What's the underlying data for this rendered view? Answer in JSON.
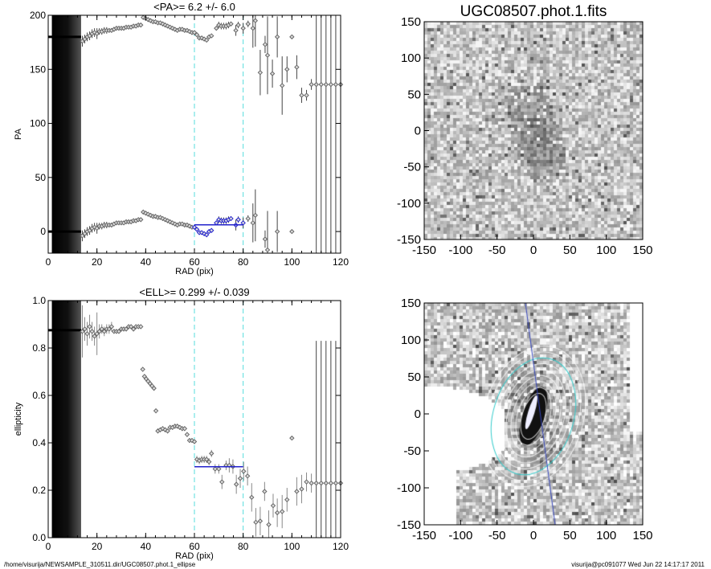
{
  "chart_data": [
    {
      "type": "scatter",
      "title": "<PA>=   6.2 +/-   6.0",
      "xlabel": "RAD (pix)",
      "ylabel": "PA",
      "xlim": [
        0,
        120
      ],
      "ylim": [
        -20,
        200
      ],
      "xticks": [
        "0",
        "20",
        "40",
        "60",
        "80",
        "100",
        "120"
      ],
      "yticks": [
        "0",
        "50",
        "100",
        "150",
        "200"
      ],
      "fit_range": [
        60,
        80
      ],
      "fit_value": 6.2,
      "fit_error": 6.0,
      "inner_value": 180,
      "points": [
        [
          14,
          176,
          5
        ],
        [
          15,
          178,
          4
        ],
        [
          16,
          180,
          4
        ],
        [
          17,
          181,
          4
        ],
        [
          18,
          183,
          4
        ],
        [
          19,
          184,
          4
        ],
        [
          20,
          183,
          5
        ],
        [
          21,
          185,
          3
        ],
        [
          22,
          185,
          3
        ],
        [
          23,
          186,
          3
        ],
        [
          24,
          186,
          3
        ],
        [
          25,
          186,
          2
        ],
        [
          26,
          186,
          2
        ],
        [
          27,
          187,
          2
        ],
        [
          28,
          188,
          2
        ],
        [
          29,
          188,
          2
        ],
        [
          30,
          188,
          2
        ],
        [
          31,
          188,
          2
        ],
        [
          32,
          189,
          1
        ],
        [
          33,
          189,
          1
        ],
        [
          34,
          189,
          1
        ],
        [
          35,
          190,
          1
        ],
        [
          36,
          190,
          1
        ],
        [
          37,
          191,
          1
        ],
        [
          38,
          191,
          1
        ],
        [
          39,
          198,
          1
        ],
        [
          40,
          197,
          1
        ],
        [
          41,
          196,
          1
        ],
        [
          42,
          195,
          1
        ],
        [
          43,
          194,
          1
        ],
        [
          44,
          194,
          1
        ],
        [
          45,
          193,
          1
        ],
        [
          46,
          193,
          1
        ],
        [
          47,
          192,
          1
        ],
        [
          48,
          191,
          1
        ],
        [
          49,
          190,
          1
        ],
        [
          50,
          189,
          1
        ],
        [
          51,
          188,
          1
        ],
        [
          52,
          187,
          1
        ],
        [
          53,
          186,
          1
        ],
        [
          54,
          187,
          1
        ],
        [
          55,
          187,
          1
        ],
        [
          56,
          186,
          1
        ],
        [
          57,
          186,
          1
        ],
        [
          58,
          185,
          1
        ],
        [
          59,
          184,
          1
        ],
        [
          60,
          184,
          1
        ],
        [
          61,
          182,
          1
        ],
        [
          62,
          179,
          1
        ],
        [
          63,
          179,
          1
        ],
        [
          64,
          178,
          1
        ],
        [
          65,
          177,
          1
        ],
        [
          66,
          180,
          1
        ],
        [
          67,
          181,
          1
        ],
        [
          69,
          188,
          2
        ],
        [
          70,
          191,
          3
        ],
        [
          71,
          190,
          3
        ],
        [
          72,
          190,
          3
        ],
        [
          73,
          190,
          3
        ],
        [
          74,
          191,
          3
        ],
        [
          75,
          192,
          2
        ],
        [
          77,
          186,
          5
        ],
        [
          78,
          191,
          3
        ],
        [
          80,
          188,
          5
        ],
        [
          82,
          192,
          3
        ],
        [
          84,
          188,
          18
        ],
        [
          85,
          195,
          24
        ],
        [
          87,
          147,
          21
        ],
        [
          89,
          173,
          8
        ],
        [
          90,
          163,
          36
        ],
        [
          92,
          146,
          13
        ],
        [
          94,
          180,
          19
        ],
        [
          96,
          135,
          27
        ],
        [
          98,
          150,
          12
        ],
        [
          100,
          180,
          0
        ],
        [
          102,
          152,
          11
        ],
        [
          104,
          126,
          7
        ],
        [
          106,
          126,
          5
        ],
        [
          108,
          136,
          5
        ],
        [
          110,
          136,
          300
        ],
        [
          112,
          136,
          300
        ],
        [
          114,
          136,
          300
        ],
        [
          116,
          136,
          300
        ],
        [
          118,
          136,
          300
        ],
        [
          120,
          136,
          3
        ]
      ]
    },
    {
      "type": "scatter",
      "title": "<ELL>= 0.299 +/-  0.039",
      "xlabel": "RAD (pix)",
      "ylabel": "ellipticity",
      "xlim": [
        0,
        120
      ],
      "ylim": [
        0,
        1
      ],
      "xticks": [
        "0",
        "20",
        "40",
        "60",
        "80",
        "100",
        "120"
      ],
      "yticks": [
        "0.0",
        "0.2",
        "0.4",
        "0.6",
        "0.8",
        "1.0"
      ],
      "fit_range": [
        60,
        80
      ],
      "fit_value": 0.299,
      "fit_error": 0.039,
      "inner_value": 0.875,
      "points": [
        [
          14,
          0.87,
          0.11
        ],
        [
          15,
          0.88,
          0.05
        ],
        [
          16,
          0.86,
          0.05
        ],
        [
          17,
          0.89,
          0.05
        ],
        [
          18,
          0.87,
          0.04
        ],
        [
          19,
          0.85,
          0.04
        ],
        [
          20,
          0.86,
          0.09
        ],
        [
          21,
          0.87,
          0.03
        ],
        [
          22,
          0.88,
          0.02
        ],
        [
          23,
          0.87,
          0.02
        ],
        [
          24,
          0.88,
          0.02
        ],
        [
          25,
          0.88,
          0.02
        ],
        [
          26,
          0.89,
          0.02
        ],
        [
          27,
          0.87,
          0.01
        ],
        [
          28,
          0.87,
          0.01
        ],
        [
          29,
          0.87,
          0.01
        ],
        [
          30,
          0.88,
          0.01
        ],
        [
          31,
          0.88,
          0.01
        ],
        [
          32,
          0.88,
          0.01
        ],
        [
          33,
          0.89,
          0.01
        ],
        [
          34,
          0.89,
          0.01
        ],
        [
          35,
          0.88,
          0.01
        ],
        [
          36,
          0.89,
          0.01
        ],
        [
          37,
          0.89,
          0.01
        ],
        [
          38,
          0.89,
          0.01
        ],
        [
          38.8,
          0.71,
          0.01
        ],
        [
          39.5,
          0.68,
          0.01
        ],
        [
          40.2,
          0.67,
          0.01
        ],
        [
          41,
          0.66,
          0.01
        ],
        [
          41.8,
          0.65,
          0.01
        ],
        [
          42.6,
          0.64,
          0.01
        ],
        [
          43.4,
          0.63,
          0.01
        ],
        [
          44.2,
          0.535,
          0.01
        ],
        [
          45,
          0.45,
          0.01
        ],
        [
          46,
          0.455,
          0.01
        ],
        [
          47,
          0.46,
          0.01
        ],
        [
          48,
          0.455,
          0.01
        ],
        [
          49,
          0.45,
          0.01
        ],
        [
          50,
          0.465,
          0.01
        ],
        [
          51,
          0.465,
          0.01
        ],
        [
          52,
          0.47,
          0.01
        ],
        [
          53,
          0.47,
          0.01
        ],
        [
          54,
          0.465,
          0.01
        ],
        [
          55,
          0.46,
          0.01
        ],
        [
          56,
          0.46,
          0.01
        ],
        [
          57,
          0.435,
          0.01
        ],
        [
          58,
          0.41,
          0.01
        ],
        [
          59,
          0.41,
          0.01
        ],
        [
          60,
          0.405,
          0.01
        ],
        [
          61,
          0.33,
          0.015
        ],
        [
          62,
          0.325,
          0.015
        ],
        [
          63,
          0.33,
          0.015
        ],
        [
          64,
          0.33,
          0.015
        ],
        [
          65,
          0.33,
          0.015
        ],
        [
          66,
          0.32,
          0.015
        ],
        [
          67,
          0.355,
          0.015
        ],
        [
          68.5,
          0.29,
          0.02
        ],
        [
          70,
          0.29,
          0.02
        ],
        [
          71.3,
          0.235,
          0.03
        ],
        [
          73,
          0.305,
          0.02
        ],
        [
          74.3,
          0.305,
          0.03
        ],
        [
          75.8,
          0.3,
          0.03
        ],
        [
          77.2,
          0.225,
          0.04
        ],
        [
          78.8,
          0.25,
          0.04
        ],
        [
          80.2,
          0.28,
          0.04
        ],
        [
          81.8,
          0.26,
          0.04
        ],
        [
          83.5,
          0.17,
          0.06
        ],
        [
          85.2,
          0.065,
          0.06
        ],
        [
          87,
          0.07,
          0.06
        ],
        [
          88.8,
          0.195,
          0.04
        ],
        [
          90.5,
          0.055,
          0.06
        ],
        [
          92.3,
          0.135,
          0.05
        ],
        [
          94,
          0.105,
          0.06
        ],
        [
          96,
          0.11,
          0.07
        ],
        [
          98,
          0.16,
          0.05
        ],
        [
          100,
          0.42,
          0
        ],
        [
          102,
          0.195,
          0.06
        ],
        [
          104,
          0.205,
          0.06
        ],
        [
          106,
          0.235,
          0.04
        ],
        [
          108,
          0.23,
          0.04
        ],
        [
          110,
          0.23,
          0.6
        ],
        [
          112,
          0.23,
          0.6
        ],
        [
          114,
          0.23,
          0.6
        ],
        [
          116,
          0.23,
          0.6
        ],
        [
          118,
          0.23,
          0.6
        ],
        [
          120,
          0.23,
          0.02
        ]
      ]
    }
  ],
  "images": {
    "top_title": "UGC08507.phot.1.fits",
    "ticks": [
      "-150",
      "-100",
      "-50",
      "0",
      "50",
      "100",
      "150"
    ]
  },
  "footer": {
    "path": "/home/visurija/NEWSAMPLE_310511.dir/UGC08507.phot.1_ellipse",
    "stamp": "visurija@pc091077  Wed Jun 22 14:17:17 2011"
  },
  "colors": {
    "fit": "#2222cc",
    "cyan": "#55dddd",
    "point": "#666666"
  }
}
